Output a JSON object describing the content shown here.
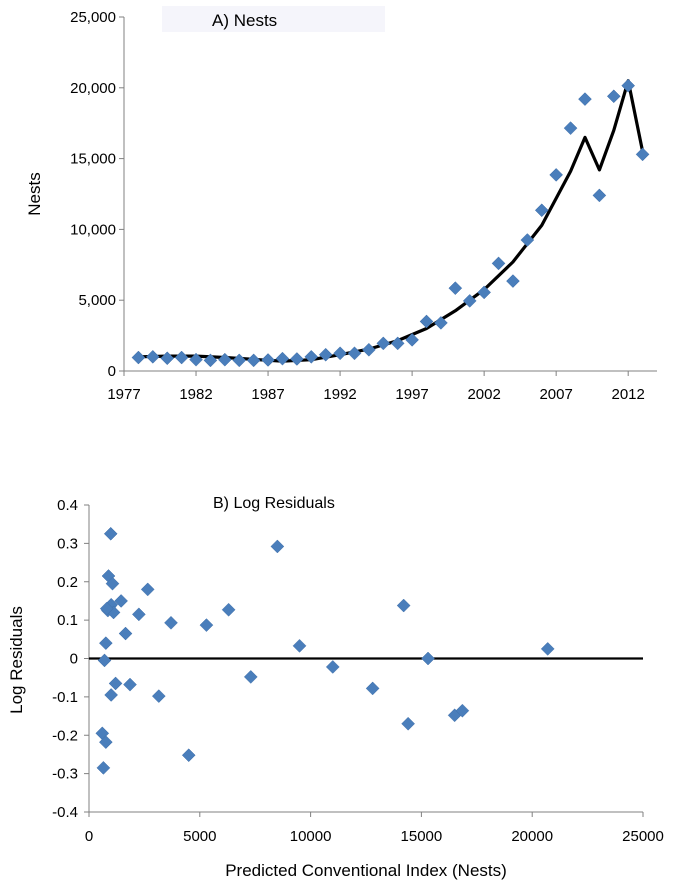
{
  "chart_data": [
    {
      "type": "scatter",
      "title": "A)   Nests",
      "ylabel": "Nests",
      "xlabel": "",
      "xlim": [
        1977,
        2014
      ],
      "ylim": [
        0,
        25000
      ],
      "xticks": [
        "1977",
        "1982",
        "1987",
        "1992",
        "1997",
        "2002",
        "2007",
        "2012"
      ],
      "yticks": [
        "0",
        "5,000",
        "10,000",
        "15,000",
        "20,000",
        "25,000"
      ],
      "marker_color": "#4a7ebb",
      "line_color": "#000000",
      "grid": false,
      "series": [
        {
          "type": "scatter",
          "x": [
            1978,
            1979,
            1980,
            1981,
            1982,
            1983,
            1984,
            1985,
            1986,
            1987,
            1988,
            1989,
            1990,
            1991,
            1992,
            1993,
            1994,
            1995,
            1996,
            1997,
            1998,
            1999,
            2000,
            2001,
            2002,
            2003,
            2004,
            2005,
            2006,
            2007,
            2008,
            2009,
            2010,
            2011,
            2012,
            2013
          ],
          "y": [
            950,
            1000,
            900,
            950,
            800,
            750,
            800,
            750,
            750,
            780,
            870,
            850,
            1000,
            1150,
            1250,
            1250,
            1500,
            1950,
            1950,
            2200,
            3500,
            3400,
            5850,
            4950,
            5550,
            7600,
            6350,
            9250,
            11350,
            13850,
            17150,
            19200,
            12400,
            19400,
            20150,
            15300
          ]
        },
        {
          "type": "line",
          "x": [
            1978,
            1980,
            1982,
            1984,
            1986,
            1988,
            1990,
            1992,
            1994,
            1996,
            1998,
            2000,
            2002,
            2004,
            2006,
            2007,
            2008,
            2009,
            2010,
            2011,
            2012,
            2013
          ],
          "y": [
            1000,
            1050,
            1050,
            950,
            820,
            700,
            800,
            1150,
            1550,
            2150,
            3000,
            4250,
            5750,
            7700,
            10300,
            12200,
            14100,
            16500,
            14200,
            17000,
            20500,
            15500
          ]
        }
      ]
    },
    {
      "type": "scatter",
      "title": "B) Log Residuals",
      "ylabel": "Log Residuals",
      "xlabel": "Predicted Conventional Index (Nests)",
      "xlim": [
        0,
        25000
      ],
      "ylim": [
        -0.4,
        0.4
      ],
      "xticks": [
        "0",
        "5000",
        "10000",
        "15000",
        "20000",
        "25000"
      ],
      "yticks": [
        "0.4",
        "0.3",
        "0.2",
        "0.1",
        "0",
        "-0.1",
        "-0.2",
        "-0.3",
        "-0.4"
      ],
      "marker_color": "#4a7ebb",
      "zero_line": true,
      "grid": false,
      "series": [
        {
          "type": "scatter",
          "x": [
            980,
            880,
            1060,
            850,
            930,
            1000,
            1110,
            800,
            760,
            1450,
            1650,
            2250,
            2650,
            3700,
            5300,
            6300,
            8500,
            9500,
            14200,
            20700,
            1200,
            1850,
            3150,
            7300,
            11000,
            12800,
            15300,
            700,
            600,
            760,
            650,
            4500,
            14400,
            16500,
            16850,
            1000
          ],
          "y": [
            0.325,
            0.215,
            0.195,
            0.125,
            0.135,
            0.14,
            0.12,
            0.13,
            0.04,
            0.15,
            0.065,
            0.115,
            0.18,
            0.093,
            0.087,
            0.127,
            0.292,
            0.033,
            0.138,
            0.025,
            -0.065,
            -0.068,
            -0.098,
            -0.048,
            -0.022,
            -0.078,
            0.0,
            -0.005,
            -0.195,
            -0.218,
            -0.285,
            -0.252,
            -0.17,
            -0.148,
            -0.136,
            -0.095
          ]
        }
      ]
    }
  ]
}
